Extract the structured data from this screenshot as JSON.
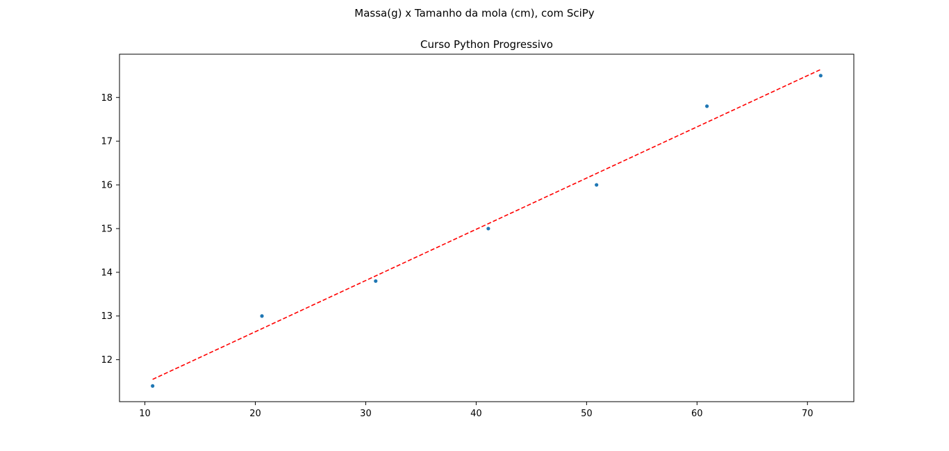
{
  "figure": {
    "suptitle": "Massa(g) x Tamanho da mola (cm), com SciPy",
    "title": "Curso Python Progressivo"
  },
  "colors": {
    "points": "#1f77b4",
    "fit_line": "#ff0000",
    "axes": "#000000"
  },
  "chart_data": {
    "type": "scatter",
    "title": "Curso Python Progressivo",
    "xlim": [
      7.7,
      74.2
    ],
    "ylim": [
      11.04,
      18.99
    ],
    "xticks": [
      10,
      20,
      30,
      40,
      50,
      60,
      70
    ],
    "yticks": [
      12,
      13,
      14,
      15,
      16,
      17,
      18
    ],
    "grid": false,
    "series": [
      {
        "kind": "points",
        "x": [
          10.7,
          20.6,
          30.9,
          41.1,
          50.9,
          60.9,
          71.2
        ],
        "y": [
          11.4,
          13.0,
          13.8,
          15.0,
          16.0,
          17.8,
          18.5
        ]
      },
      {
        "kind": "fit-line",
        "style": "dashed",
        "x": [
          10.7,
          71.2
        ],
        "y": [
          11.55,
          18.64
        ]
      }
    ]
  }
}
